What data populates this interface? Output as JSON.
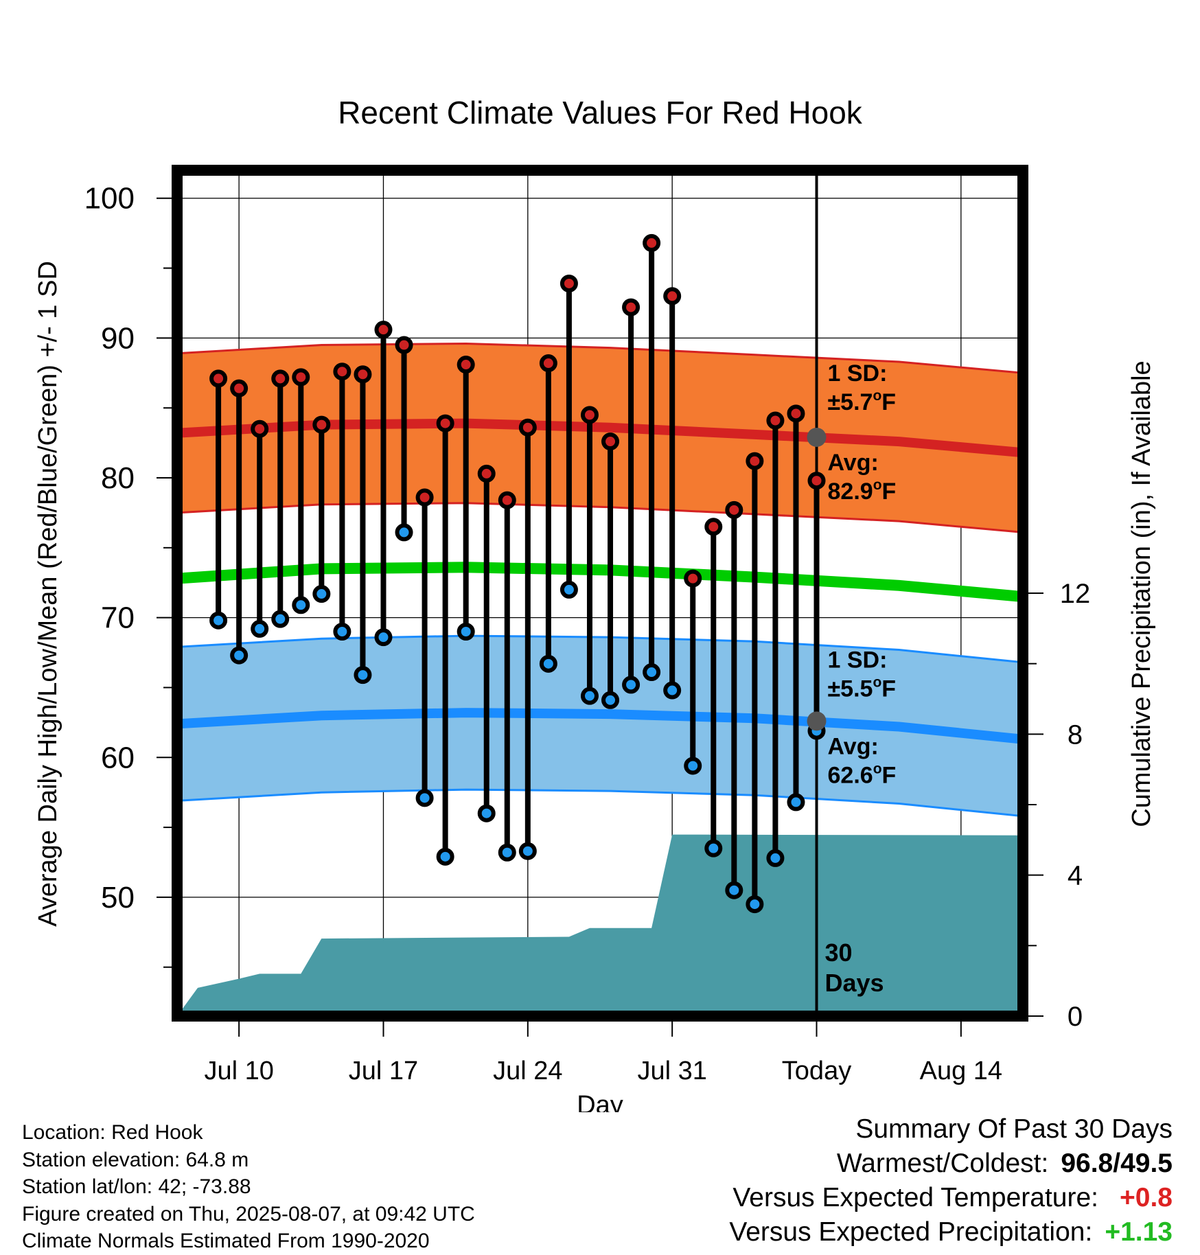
{
  "title": "Recent Climate Values For Red Hook",
  "colors": {
    "high_band": "#f47a30",
    "high_line": "#d42222",
    "low_band": "#85c1e9",
    "low_line": "#1a8cff",
    "mean_line": "#00cc00",
    "precip_fill": "#4a9ba5",
    "high_dot": "#cc2222",
    "low_dot": "#2299ee",
    "annotation": "#555555",
    "positive_temp": "#dd2222",
    "positive_precip": "#22bb22"
  },
  "chart_data": {
    "type": "line",
    "title": "Recent Climate Values For Red Hook",
    "xlabel": "Day",
    "ylabel": "Average Daily High/Low/Mean (Red/Blue/Green) +/- 1 SD",
    "y2label": "Cumulative Precipitation (in), If Available",
    "ylim": [
      41.5,
      102
    ],
    "y2lim": [
      0,
      24
    ],
    "x_range": [
      "2025-07-07",
      "2025-08-17"
    ],
    "x_ticks": [
      {
        "date": "2025-07-10",
        "label": "Jul 10"
      },
      {
        "date": "2025-07-17",
        "label": "Jul 17"
      },
      {
        "date": "2025-07-24",
        "label": "Jul 24"
      },
      {
        "date": "2025-07-31",
        "label": "Jul 31"
      },
      {
        "date": "2025-08-07",
        "label": "Today"
      },
      {
        "date": "2025-08-14",
        "label": "Aug 14"
      }
    ],
    "y_ticks": [
      50,
      60,
      70,
      80,
      90,
      100
    ],
    "y2_ticks": [
      0,
      4,
      8,
      12
    ],
    "grid": true,
    "days": [
      "2025-07-09",
      "2025-07-10",
      "2025-07-11",
      "2025-07-12",
      "2025-07-13",
      "2025-07-14",
      "2025-07-15",
      "2025-07-16",
      "2025-07-17",
      "2025-07-18",
      "2025-07-19",
      "2025-07-20",
      "2025-07-21",
      "2025-07-22",
      "2025-07-23",
      "2025-07-24",
      "2025-07-25",
      "2025-07-26",
      "2025-07-27",
      "2025-07-28",
      "2025-07-29",
      "2025-07-30",
      "2025-07-31",
      "2025-08-01",
      "2025-08-02",
      "2025-08-03",
      "2025-08-04",
      "2025-08-05",
      "2025-08-06",
      "2025-08-07"
    ],
    "daily_high": [
      87.1,
      86.4,
      83.5,
      87.1,
      87.2,
      83.8,
      87.6,
      87.4,
      90.6,
      89.5,
      78.6,
      83.9,
      88.1,
      80.3,
      78.4,
      83.6,
      88.2,
      93.9,
      84.5,
      82.6,
      92.2,
      96.8,
      93.0,
      72.8,
      76.5,
      77.7,
      81.2,
      84.1,
      84.6,
      79.8
    ],
    "daily_low": [
      69.8,
      67.3,
      69.2,
      69.9,
      70.9,
      71.7,
      69.0,
      65.9,
      68.6,
      76.1,
      57.1,
      52.9,
      69.0,
      56.0,
      53.2,
      53.3,
      66.7,
      72.0,
      64.4,
      64.1,
      65.2,
      66.1,
      64.8,
      59.4,
      53.5,
      50.5,
      49.5,
      52.8,
      56.8,
      61.9
    ],
    "normal_x": [
      "2025-07-07",
      "2025-07-14",
      "2025-07-21",
      "2025-07-28",
      "2025-08-04",
      "2025-08-11",
      "2025-08-17"
    ],
    "normal_high": [
      83.2,
      83.8,
      83.9,
      83.6,
      83.1,
      82.6,
      81.8
    ],
    "high_sd": 5.7,
    "normal_low": [
      62.4,
      63.0,
      63.2,
      63.1,
      62.8,
      62.2,
      61.3
    ],
    "low_sd": 5.5,
    "normal_mean": [
      72.8,
      73.5,
      73.6,
      73.4,
      72.9,
      72.3,
      71.5
    ],
    "precip_x": [
      "2025-07-07",
      "2025-07-08",
      "2025-07-10",
      "2025-07-11",
      "2025-07-13",
      "2025-07-14",
      "2025-07-26",
      "2025-07-27",
      "2025-07-30",
      "2025-07-31",
      "2025-08-17"
    ],
    "precip_cum": [
      0.0,
      0.8,
      1.06,
      1.2,
      1.2,
      2.2,
      2.25,
      2.5,
      2.5,
      5.15,
      5.13
    ],
    "annotations": {
      "high_sd_label": "1 SD:",
      "high_sd_value": "±5.7",
      "high_avg_label": "Avg:",
      "high_avg_value": "82.9",
      "low_sd_label": "1 SD:",
      "low_sd_value": "±5.5",
      "low_avg_label": "Avg:",
      "low_avg_value": "62.6",
      "degree": "o",
      "unit": "F",
      "days_count": "30",
      "days_word": "Days"
    }
  },
  "footer": {
    "location": "Location: Red Hook",
    "elevation": "Station elevation: 64.8 m",
    "latlon": "Station lat/lon: 42; -73.88",
    "created": "Figure created on Thu, 2025-08-07, at 09:42 UTC",
    "normals": "Climate Normals Estimated From 1990-2020"
  },
  "summary": {
    "heading": "Summary Of Past 30 Days",
    "warmest_label": "Warmest/Coldest:",
    "warmest_value": "96.8",
    "slash": "/",
    "coldest_value": "49.5",
    "temp_label": "Versus Expected Temperature:",
    "temp_value": "+0.8",
    "precip_label": "Versus Expected Precipitation:",
    "precip_value": "+1.13"
  }
}
